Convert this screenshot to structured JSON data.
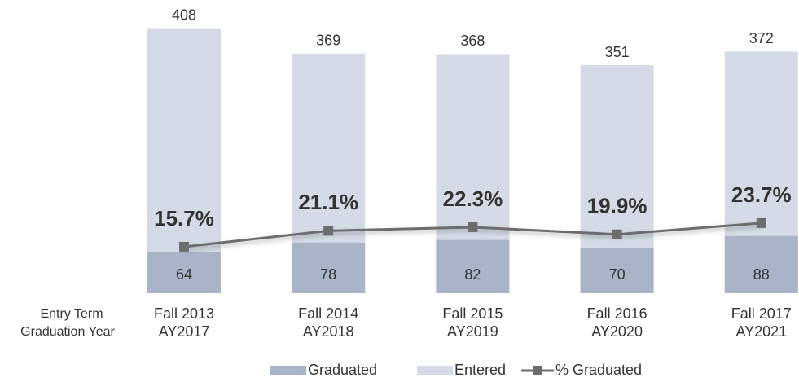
{
  "chart_data": {
    "type": "bar",
    "categories": [
      "Fall 2013",
      "Fall 2014",
      "Fall 2015",
      "Fall 2016",
      "Fall 2017"
    ],
    "graduation_years": [
      "AY2017",
      "AY2018",
      "AY2019",
      "AY2020",
      "AY2021"
    ],
    "category_labels": [
      "Entry Term",
      "Graduation Year"
    ],
    "series": [
      {
        "name": "Graduated",
        "color": "#a9b4c9",
        "values": [
          64,
          78,
          82,
          70,
          88
        ]
      },
      {
        "name": "Entered",
        "color": "#d5dbe6",
        "values": [
          408,
          369,
          368,
          351,
          372
        ]
      },
      {
        "name": "% Graduated",
        "color": "#6d6d6d",
        "axis": "y2",
        "values": [
          15.7,
          21.1,
          22.3,
          19.9,
          23.7
        ],
        "value_labels": [
          "15.7%",
          "21.1%",
          "22.3%",
          "19.9%",
          "23.7%"
        ]
      }
    ],
    "ylim": [
      0,
      410
    ],
    "y2lim": [
      0,
      90
    ],
    "legend": "bottom"
  }
}
